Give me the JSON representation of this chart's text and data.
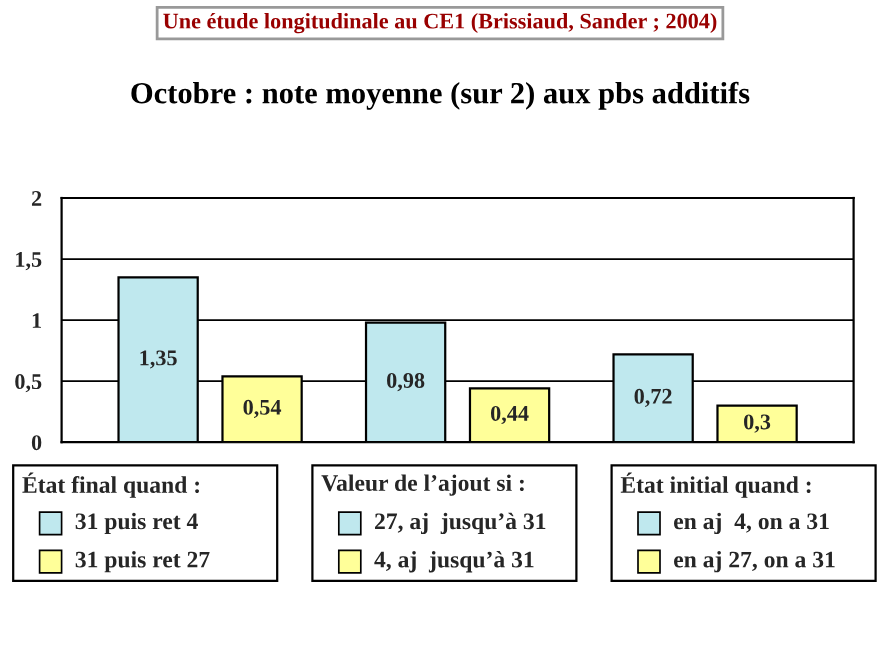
{
  "chart_data": {
    "type": "bar",
    "subtitle": "Une étude longitudinale au CE1 (Brissiaud, Sander ; 2004)",
    "title": "Octobre : note moyenne (sur 2) aux pbs additifs",
    "categories": [
      null,
      null,
      null
    ],
    "series": [
      {
        "color": "#bfe8ee",
        "values": [
          1.35,
          0.98,
          0.72
        ],
        "value_labels": [
          "1,35",
          "0,98",
          "0,72"
        ]
      },
      {
        "color": "#ffff99",
        "values": [
          0.54,
          0.44,
          0.3
        ],
        "value_labels": [
          "0,54",
          "0,44",
          "0,3"
        ]
      }
    ],
    "ylim": [
      0,
      2
    ],
    "yticks": [
      {
        "value": 0,
        "label": "0"
      },
      {
        "value": 0.5,
        "label": "0,5"
      },
      {
        "value": 1,
        "label": "1"
      },
      {
        "value": 1.5,
        "label": "1,5"
      },
      {
        "value": 2,
        "label": "2"
      }
    ],
    "grid": "y",
    "annotations": [
      "État final quand :",
      "31 puis ret 4",
      "31 puis ret 27",
      "Valeur de l’ajout si :",
      "27, aj  jusqu’à 31",
      "4, aj  jusqu’à 31",
      "État initial quand :",
      "en aj  4, on a 31",
      "en aj 27, on a 31"
    ]
  }
}
